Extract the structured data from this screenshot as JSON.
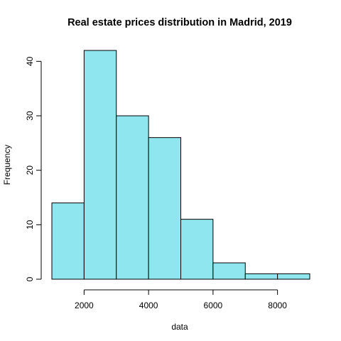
{
  "chart_data": {
    "type": "histogram",
    "title": "Real estate prices distribution in Madrid, 2019",
    "xlabel": "data",
    "ylabel": "Frequency",
    "bins": [
      {
        "from": 1000,
        "to": 2000,
        "count": 14
      },
      {
        "from": 2000,
        "to": 3000,
        "count": 42
      },
      {
        "from": 3000,
        "to": 4000,
        "count": 30
      },
      {
        "from": 4000,
        "to": 5000,
        "count": 26
      },
      {
        "from": 5000,
        "to": 6000,
        "count": 11
      },
      {
        "from": 6000,
        "to": 7000,
        "count": 3
      },
      {
        "from": 7000,
        "to": 8000,
        "count": 1
      },
      {
        "from": 8000,
        "to": 9000,
        "count": 1
      }
    ],
    "x_ticks": [
      2000,
      4000,
      6000,
      8000
    ],
    "y_ticks": [
      0,
      10,
      20,
      30,
      40
    ],
    "xlim": [
      1000,
      9000
    ],
    "ylim": [
      0,
      42
    ],
    "bar_color": "#90E6EE",
    "bar_border_color": "#000000",
    "grid": false
  }
}
